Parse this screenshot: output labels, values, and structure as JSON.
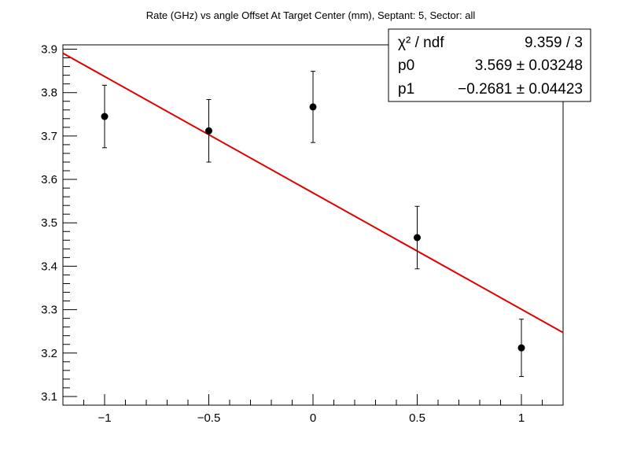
{
  "chart_data": {
    "type": "scatter",
    "title": "Rate (GHz) vs angle Offset At Target Center (mm), Septant: 5, Sector: all",
    "xlabel": "",
    "ylabel": "",
    "xlim": [
      -1.2,
      1.2
    ],
    "ylim": [
      3.08,
      3.91
    ],
    "x_ticks": [
      -1,
      -0.5,
      0,
      0.5,
      1
    ],
    "x_tick_labels": [
      "−1",
      "−0.5",
      "0",
      "0.5",
      "1"
    ],
    "y_ticks": [
      3.1,
      3.2,
      3.3,
      3.4,
      3.5,
      3.6,
      3.7,
      3.8,
      3.9
    ],
    "y_tick_labels": [
      "3.1",
      "3.2",
      "3.3",
      "3.4",
      "3.5",
      "3.6",
      "3.7",
      "3.8",
      "3.9"
    ],
    "grid": false,
    "points": [
      {
        "x": -1.0,
        "y": 3.745,
        "err": 0.072
      },
      {
        "x": -0.5,
        "y": 3.712,
        "err": 0.072
      },
      {
        "x": 0.0,
        "y": 3.767,
        "err": 0.082
      },
      {
        "x": 0.5,
        "y": 3.466,
        "err": 0.072
      },
      {
        "x": 1.0,
        "y": 3.212,
        "err": 0.066
      }
    ],
    "fit": {
      "p0": 3.569,
      "p1": -0.2681,
      "color": "#e00000"
    },
    "stats_box": {
      "placement": "top-right",
      "rows": [
        {
          "label": "χ² / ndf",
          "value": "9.359 / 3"
        },
        {
          "label": "p0",
          "value": "3.569 ± 0.03248"
        },
        {
          "label": "p1",
          "value": "−0.2681 ± 0.04423"
        }
      ]
    }
  }
}
